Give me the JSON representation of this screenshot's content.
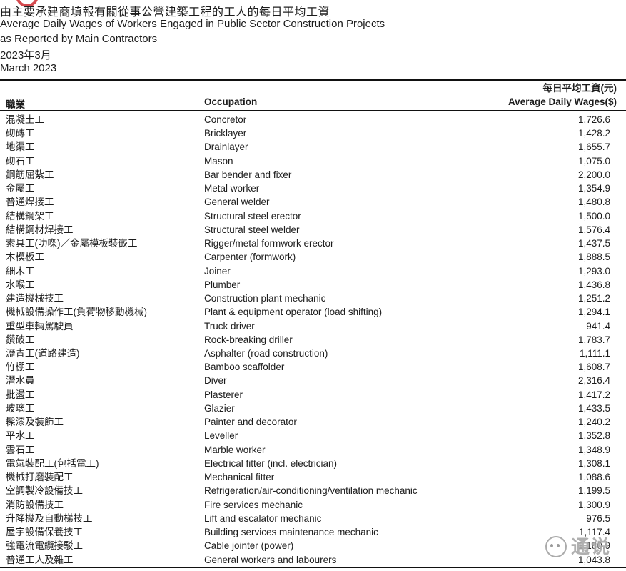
{
  "header": {
    "title_zh": "由主要承建商填報有關從事公營建築工程的工人的每日平均工資",
    "title_en_line1": "Average Daily Wages of Workers Engaged in Public Sector Construction Projects",
    "title_en_line2": "as Reported by Main Contractors",
    "period_zh": "2023年3月",
    "period_en": "March 2023"
  },
  "table": {
    "columns": {
      "occupation_zh": "職業",
      "occupation_en": "Occupation",
      "wages_zh": "每日平均工資(元)",
      "wages_en": "Average Daily Wages($)"
    },
    "rows": [
      {
        "zh": "混凝土工",
        "en": "Concretor",
        "wage": "1,726.6"
      },
      {
        "zh": "砌磚工",
        "en": "Bricklayer",
        "wage": "1,428.2"
      },
      {
        "zh": "地渠工",
        "en": "Drainlayer",
        "wage": "1,655.7"
      },
      {
        "zh": "砌石工",
        "en": "Mason",
        "wage": "1,075.0"
      },
      {
        "zh": "鋼筋屈紮工",
        "en": "Bar bender and fixer",
        "wage": "2,200.0"
      },
      {
        "zh": "金屬工",
        "en": "Metal worker",
        "wage": "1,354.9"
      },
      {
        "zh": "普通焊接工",
        "en": "General welder",
        "wage": "1,480.8"
      },
      {
        "zh": "結構鋼架工",
        "en": "Structural steel erector",
        "wage": "1,500.0"
      },
      {
        "zh": "結構鋼材焊接工",
        "en": "Structural steel welder",
        "wage": "1,576.4"
      },
      {
        "zh": "索具工(叻㗎)／金屬模板裝嵌工",
        "en": "Rigger/metal formwork erector",
        "wage": "1,437.5"
      },
      {
        "zh": "木模板工",
        "en": "Carpenter (formwork)",
        "wage": "1,888.5"
      },
      {
        "zh": "細木工",
        "en": "Joiner",
        "wage": "1,293.0"
      },
      {
        "zh": "水喉工",
        "en": "Plumber",
        "wage": "1,436.8"
      },
      {
        "zh": "建造機械技工",
        "en": "Construction plant mechanic",
        "wage": "1,251.2"
      },
      {
        "zh": "機械設備操作工(負荷物移動機械)",
        "en": "Plant & equipment operator (load shifting)",
        "wage": "1,294.1"
      },
      {
        "zh": "重型車輛駕駛員",
        "en": "Truck driver",
        "wage": "941.4"
      },
      {
        "zh": "鑽破工",
        "en": "Rock-breaking driller",
        "wage": "1,783.7"
      },
      {
        "zh": "瀝青工(道路建造)",
        "en": "Asphalter (road construction)",
        "wage": "1,111.1"
      },
      {
        "zh": "竹棚工",
        "en": "Bamboo scaffolder",
        "wage": "1,608.7"
      },
      {
        "zh": "潛水員",
        "en": "Diver",
        "wage": "2,316.4"
      },
      {
        "zh": "批盪工",
        "en": "Plasterer",
        "wage": "1,417.2"
      },
      {
        "zh": "玻璃工",
        "en": "Glazier",
        "wage": "1,433.5"
      },
      {
        "zh": "髹漆及裝飾工",
        "en": "Painter and decorator",
        "wage": "1,240.2"
      },
      {
        "zh": "平水工",
        "en": "Leveller",
        "wage": "1,352.8"
      },
      {
        "zh": "雲石工",
        "en": "Marble worker",
        "wage": "1,348.9"
      },
      {
        "zh": "電氣裝配工(包括電工)",
        "en": "Electrical fitter (incl. electrician)",
        "wage": "1,308.1"
      },
      {
        "zh": "機械打磨裝配工",
        "en": "Mechanical fitter",
        "wage": "1,088.6"
      },
      {
        "zh": "空調製冷設備技工",
        "en": "Refrigeration/air-conditioning/ventilation mechanic",
        "wage": "1,199.5"
      },
      {
        "zh": "消防設備技工",
        "en": "Fire services mechanic",
        "wage": "1,300.9"
      },
      {
        "zh": "升降機及自動梯技工",
        "en": "Lift and escalator mechanic",
        "wage": "976.5"
      },
      {
        "zh": "屋宇設備保養技工",
        "en": "Building services maintenance mechanic",
        "wage": "1,117.4"
      },
      {
        "zh": "強電流電纜接駁工",
        "en": "Cable jointer (power)",
        "wage": "1,180.9"
      },
      {
        "zh": "普通工人及雜工",
        "en": "General workers and labourers",
        "wage": "1,043.8"
      }
    ]
  },
  "watermark": {
    "text": "通说"
  },
  "colors": {
    "rule": "#111111",
    "text": "#1c1c1c",
    "logo_red": "#d4494e",
    "watermark_gray": "#969696"
  }
}
